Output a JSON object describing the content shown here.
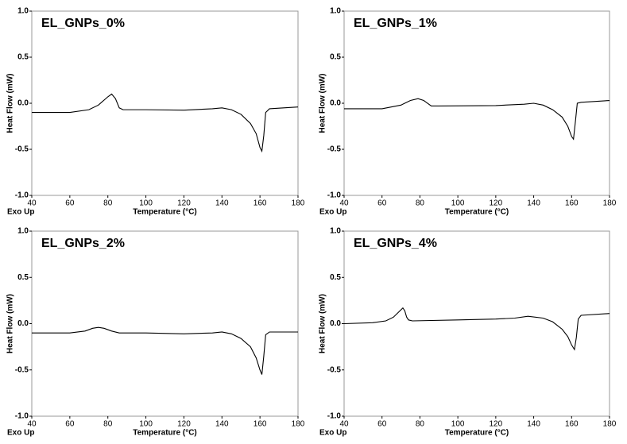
{
  "chart_data": [
    {
      "type": "line",
      "title": "EL_GNPs_0%",
      "x_label": "Temperature (°C)",
      "y_label": "Heat Flow (mW)",
      "annotation": "Exo Up",
      "color": "#000000",
      "x": [
        40,
        60,
        70,
        75,
        80,
        82,
        84,
        86,
        88,
        100,
        120,
        135,
        140,
        145,
        150,
        155,
        158,
        160,
        161,
        162,
        163,
        165,
        180
      ],
      "values": [
        -0.1,
        -0.1,
        -0.07,
        -0.02,
        0.07,
        0.1,
        0.05,
        -0.05,
        -0.07,
        -0.07,
        -0.075,
        -0.06,
        -0.05,
        -0.07,
        -0.12,
        -0.22,
        -0.33,
        -0.48,
        -0.52,
        -0.35,
        -0.1,
        -0.06,
        -0.04
      ],
      "xlim": [
        40,
        180
      ],
      "ylim": [
        -1.0,
        1.0
      ],
      "xticks": [
        40,
        60,
        80,
        100,
        120,
        140,
        160,
        180
      ],
      "yticks": [
        {
          "value": -1.0,
          "label": "-1.0"
        },
        -0.5,
        {
          "value": 0.0,
          "label": "0.0"
        },
        0.5,
        {
          "value": 1.0,
          "label": "1.0"
        }
      ]
    },
    {
      "type": "line",
      "title": "EL_GNPs_1%",
      "x_label": "Temperature (°C)",
      "y_label": "Heat Flow (mW)",
      "annotation": "Exo Up",
      "color": "#000000",
      "x": [
        40,
        60,
        70,
        75,
        79,
        82,
        86,
        90,
        120,
        135,
        140,
        145,
        150,
        155,
        158,
        160,
        161,
        162,
        163,
        165,
        180
      ],
      "values": [
        -0.06,
        -0.06,
        -0.02,
        0.03,
        0.05,
        0.03,
        -0.03,
        -0.03,
        -0.025,
        -0.01,
        0.0,
        -0.02,
        -0.07,
        -0.15,
        -0.25,
        -0.36,
        -0.39,
        -0.2,
        0.0,
        0.01,
        0.03
      ],
      "xlim": [
        40,
        180
      ],
      "ylim": [
        -1.0,
        1.0
      ],
      "xticks": [
        40,
        60,
        80,
        100,
        120,
        140,
        160,
        180
      ],
      "yticks": [
        {
          "value": -1.0,
          "label": "-1.0"
        },
        -0.5,
        {
          "value": 0.0,
          "label": "0.0"
        },
        0.5,
        {
          "value": 1.0,
          "label": "1.0"
        }
      ]
    },
    {
      "type": "line",
      "title": "EL_GNPs_2%",
      "x_label": "Temperature (°C)",
      "y_label": "Heat Flow (mW)",
      "annotation": "Exo Up",
      "color": "#000000",
      "x": [
        40,
        60,
        68,
        72,
        75,
        78,
        82,
        86,
        100,
        120,
        135,
        140,
        145,
        150,
        155,
        158,
        160,
        161,
        162,
        163,
        165,
        180
      ],
      "values": [
        -0.1,
        -0.1,
        -0.08,
        -0.05,
        -0.04,
        -0.05,
        -0.08,
        -0.1,
        -0.1,
        -0.11,
        -0.1,
        -0.09,
        -0.11,
        -0.16,
        -0.25,
        -0.37,
        -0.5,
        -0.55,
        -0.35,
        -0.12,
        -0.09,
        -0.09
      ],
      "xlim": [
        40,
        180
      ],
      "ylim": [
        -1.0,
        1.0
      ],
      "xticks": [
        40,
        60,
        80,
        100,
        120,
        140,
        160,
        180
      ],
      "yticks": [
        {
          "value": -1.0,
          "label": "-1.0"
        },
        -0.5,
        {
          "value": 0.0,
          "label": "0.0"
        },
        0.5,
        {
          "value": 1.0,
          "label": "1.0"
        }
      ]
    },
    {
      "type": "line",
      "title": "EL_GNPs_4%",
      "x_label": "Temperature (°C)",
      "y_label": "Heat Flow (mW)",
      "annotation": "Exo Up",
      "color": "#000000",
      "x": [
        40,
        55,
        62,
        66,
        69,
        71,
        72,
        73,
        74,
        76,
        100,
        120,
        130,
        137,
        145,
        150,
        155,
        158,
        160,
        161.5,
        162.5,
        163.5,
        165,
        180
      ],
      "values": [
        0.0,
        0.01,
        0.03,
        0.07,
        0.13,
        0.17,
        0.14,
        0.07,
        0.04,
        0.03,
        0.04,
        0.05,
        0.06,
        0.08,
        0.06,
        0.02,
        -0.06,
        -0.14,
        -0.23,
        -0.28,
        -0.15,
        0.05,
        0.09,
        0.11
      ],
      "xlim": [
        40,
        180
      ],
      "ylim": [
        -1.0,
        1.0
      ],
      "xticks": [
        40,
        60,
        80,
        100,
        120,
        140,
        160,
        180
      ],
      "yticks": [
        {
          "value": -1.0,
          "label": "-1.0"
        },
        -0.5,
        {
          "value": 0.0,
          "label": "0.0"
        },
        0.5,
        {
          "value": 1.0,
          "label": "1.0"
        }
      ]
    }
  ]
}
